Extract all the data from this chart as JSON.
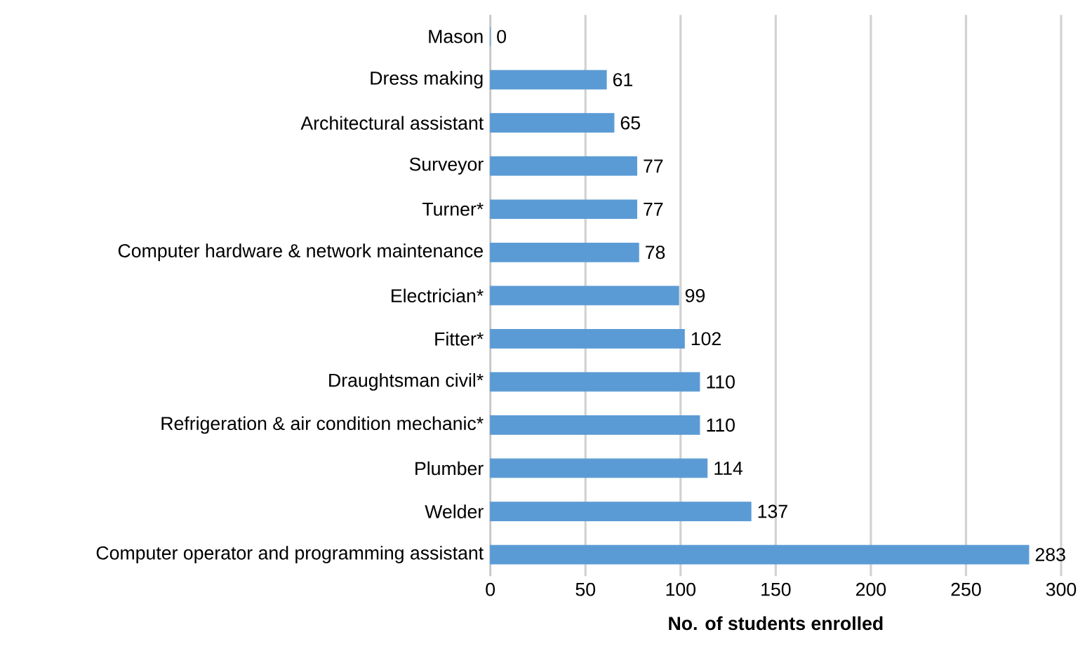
{
  "chart_data": {
    "type": "bar",
    "orientation": "horizontal",
    "xlabel": "No. of students enrolled",
    "categories": [
      "Mason",
      "Dress making",
      "Architectural assistant",
      "Surveyor",
      "Turner*",
      "Computer hardware & network  maintenance",
      "Electrician*",
      "Fitter*",
      "Draughtsman civil*",
      "Refrigeration & air condition mechanic*",
      "Plumber",
      "Welder",
      "Computer operator and programming assistant"
    ],
    "values": [
      0,
      61,
      65,
      77,
      77,
      78,
      99,
      102,
      110,
      110,
      114,
      137,
      283
    ],
    "color": "#5b9bd5",
    "xlim": [
      0,
      300
    ],
    "xticks": [
      0,
      50,
      100,
      150,
      200,
      250,
      300
    ],
    "grid": "x",
    "data_labels": true
  }
}
